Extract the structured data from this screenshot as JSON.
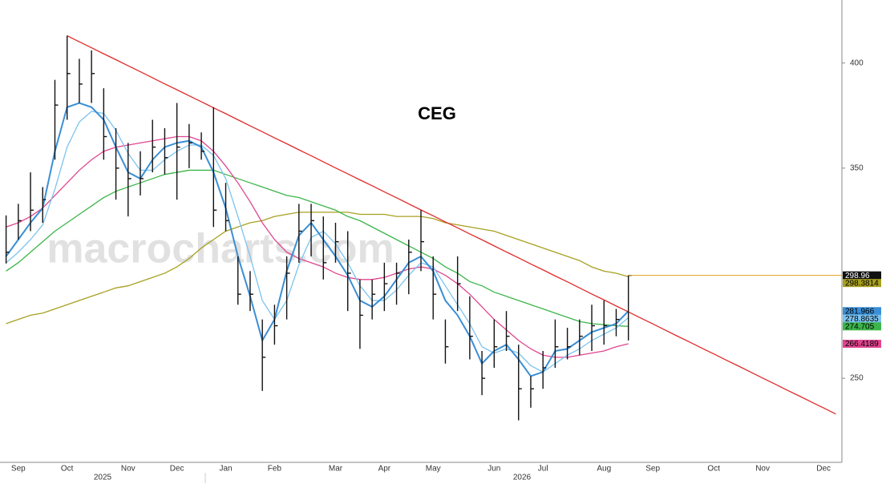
{
  "chart_data": {
    "type": "ohlc",
    "title": "CEG",
    "watermark": "macrocharts.com",
    "categories": [
      null,
      "Sep",
      null,
      null,
      null,
      "Oct",
      null,
      null,
      null,
      null,
      "Nov",
      null,
      null,
      null,
      "Dec",
      null,
      null,
      null,
      "Jan",
      null,
      null,
      null,
      "Feb",
      null,
      null,
      null,
      null,
      "Mar",
      null,
      null,
      null,
      "Apr",
      null,
      null,
      null,
      "May",
      null,
      null,
      null,
      null,
      "Jun",
      null,
      null,
      null,
      "Jul",
      null,
      null,
      null,
      null,
      "Aug",
      null,
      null,
      null,
      "Sep",
      null,
      null,
      null,
      null,
      "Oct",
      null,
      null,
      null,
      "Nov",
      null,
      null,
      null,
      null,
      "Dec",
      null
    ],
    "years": [
      "2025",
      "2026"
    ],
    "ylim": [
      210,
      430
    ],
    "yticks": [
      250,
      350,
      400
    ],
    "ohlc": {
      "color": "#111111",
      "high": [
        327.5,
        333,
        348,
        341,
        392,
        413,
        402,
        406,
        388,
        369,
        362,
        358,
        373,
        369,
        381,
        371,
        367,
        379,
        343,
        308,
        301,
        278,
        285,
        308,
        333,
        333,
        327,
        324,
        320,
        297,
        297,
        305,
        305,
        316,
        330,
        308,
        278,
        308,
        289,
        263,
        278,
        282,
        266,
        251,
        263,
        278,
        274,
        278,
        285,
        287,
        283,
        299,
        null,
        null,
        null,
        null,
        null,
        null,
        null,
        null,
        null,
        null,
        null,
        null,
        null,
        null,
        null,
        null,
        null
      ],
      "low": [
        304.6,
        316,
        320,
        324,
        354,
        373,
        381,
        381,
        354,
        335,
        327,
        337,
        348,
        347,
        335,
        350,
        354,
        322,
        320,
        285,
        282,
        244,
        266,
        278,
        305,
        308,
        297,
        305,
        282,
        264,
        278,
        282,
        285,
        290,
        301,
        278,
        257,
        282,
        259,
        242,
        255,
        263,
        230,
        236,
        245,
        255,
        259,
        261,
        263,
        266,
        270,
        268,
        null,
        null,
        null,
        null,
        null,
        null,
        null,
        null,
        null,
        null,
        null,
        null,
        null,
        null,
        null,
        null,
        null
      ],
      "close": [
        310,
        325,
        330,
        335,
        380,
        395,
        390,
        395,
        365,
        350,
        345,
        345,
        360,
        355,
        360,
        362,
        358,
        330,
        325,
        290,
        290,
        260,
        275,
        300,
        320,
        325,
        305,
        315,
        300,
        280,
        290,
        295,
        300,
        310,
        315,
        290,
        265,
        295,
        270,
        250,
        265,
        270,
        245,
        245,
        255,
        265,
        265,
        270,
        275,
        275,
        278,
        298.96,
        null,
        null,
        null,
        null,
        null,
        null,
        null,
        null,
        null,
        null,
        null,
        null,
        null,
        null,
        null,
        null,
        null
      ],
      "label_color": "#111111",
      "level_color": "#e0a020"
    },
    "moving_averages": [
      {
        "color": "#a8a020",
        "values": [
          276,
          278,
          280,
          281,
          283,
          285,
          287,
          289,
          291,
          293,
          294,
          296,
          298,
          300,
          303,
          307,
          312,
          316,
          320,
          322,
          324,
          325,
          327,
          328,
          329,
          329,
          329,
          329,
          329,
          328,
          328,
          328,
          327,
          327,
          327,
          326,
          324,
          323,
          322,
          321,
          320,
          318,
          316,
          314,
          312,
          310,
          308,
          306,
          303,
          301,
          300,
          298.3814,
          null,
          null,
          null,
          null,
          null,
          null,
          null,
          null,
          null,
          null,
          null,
          null,
          null,
          null,
          null,
          null,
          null
        ]
      },
      {
        "color": "#3cb54a",
        "values": [
          301,
          305,
          310,
          315,
          320,
          324,
          328,
          332,
          336,
          339,
          341,
          343,
          345,
          347,
          348,
          349,
          349,
          349,
          347,
          345,
          343,
          341,
          339,
          337,
          336,
          334,
          332,
          330,
          327,
          325,
          322,
          319,
          316,
          313,
          310,
          307,
          303,
          300,
          296,
          294,
          291,
          289,
          287,
          285,
          283,
          281,
          279,
          277,
          276,
          275.5,
          275,
          274.705,
          null,
          null,
          null,
          null,
          null,
          null,
          null,
          null,
          null,
          null,
          null,
          null,
          null,
          null,
          null,
          null,
          null
        ]
      },
      {
        "color": "#e0458f",
        "values": [
          322,
          324,
          327,
          331,
          337,
          343,
          349,
          354,
          358,
          360,
          361,
          362,
          363,
          364,
          365,
          365,
          363,
          358,
          351,
          343,
          334,
          324,
          316,
          310,
          307,
          305,
          303,
          300,
          298,
          297,
          297,
          298,
          300,
          302,
          303,
          302,
          299,
          295,
          290,
          284,
          278,
          273,
          268,
          264,
          261,
          260,
          260,
          261,
          262,
          263,
          265,
          266.4189,
          null,
          null,
          null,
          null,
          null,
          null,
          null,
          null,
          null,
          null,
          null,
          null,
          null,
          null,
          null,
          null,
          null
        ]
      },
      {
        "color": "#7cc3ef",
        "values": [
          305,
          310,
          316,
          323,
          340,
          360,
          372,
          377,
          376,
          368,
          357,
          349,
          349,
          354,
          358,
          361,
          361,
          356,
          345,
          327,
          308,
          287,
          278,
          287,
          304,
          317,
          320,
          314,
          305,
          294,
          287,
          287,
          292,
          299,
          305,
          303,
          294,
          285,
          276,
          265,
          262,
          264,
          262,
          256,
          253,
          257,
          261,
          264,
          268,
          271,
          274,
          278.8635,
          null,
          null,
          null,
          null,
          null,
          null,
          null,
          null,
          null,
          null,
          null,
          null,
          null,
          null,
          null,
          null,
          null
        ]
      },
      {
        "color": "#3a8fd6",
        "values": [
          308,
          316,
          324,
          331,
          358,
          379,
          381,
          379,
          373,
          360,
          348,
          345,
          354,
          360,
          362,
          363,
          360,
          348,
          331,
          308,
          289,
          268,
          278,
          301,
          318,
          324,
          316,
          308,
          299,
          287,
          284,
          289,
          297,
          305,
          308,
          301,
          287,
          280,
          270,
          257,
          263,
          266,
          259,
          251,
          253,
          263,
          264,
          268,
          272,
          274,
          276,
          281.966,
          null,
          null,
          null,
          null,
          null,
          null,
          null,
          null,
          null,
          null,
          null,
          null,
          null,
          null,
          null,
          null,
          null
        ]
      }
    ],
    "trendline": {
      "color": "#e02a2a",
      "values": [
        null,
        null,
        null,
        null,
        null,
        413,
        410.1,
        407.3,
        404.4,
        401.6,
        398.7,
        395.9,
        393,
        390.1,
        387.3,
        384.4,
        381.6,
        378.7,
        375.9,
        373,
        370.1,
        367.3,
        364.4,
        361.6,
        358.7,
        355.9,
        353,
        350.1,
        347.3,
        344.4,
        341.6,
        338.7,
        335.9,
        333,
        330.1,
        327.3,
        324.4,
        321.6,
        318.7,
        315.9,
        313,
        310.1,
        307.3,
        304.4,
        301.6,
        298.7,
        295.9,
        293,
        290.1,
        287.3,
        284.4,
        281.6,
        278.7,
        275.9,
        273,
        270.1,
        267.3,
        264.4,
        261.6,
        258.7,
        255.9,
        253,
        250.1,
        247.3,
        244.4,
        241.6,
        238.7,
        235.9,
        233
      ]
    }
  }
}
